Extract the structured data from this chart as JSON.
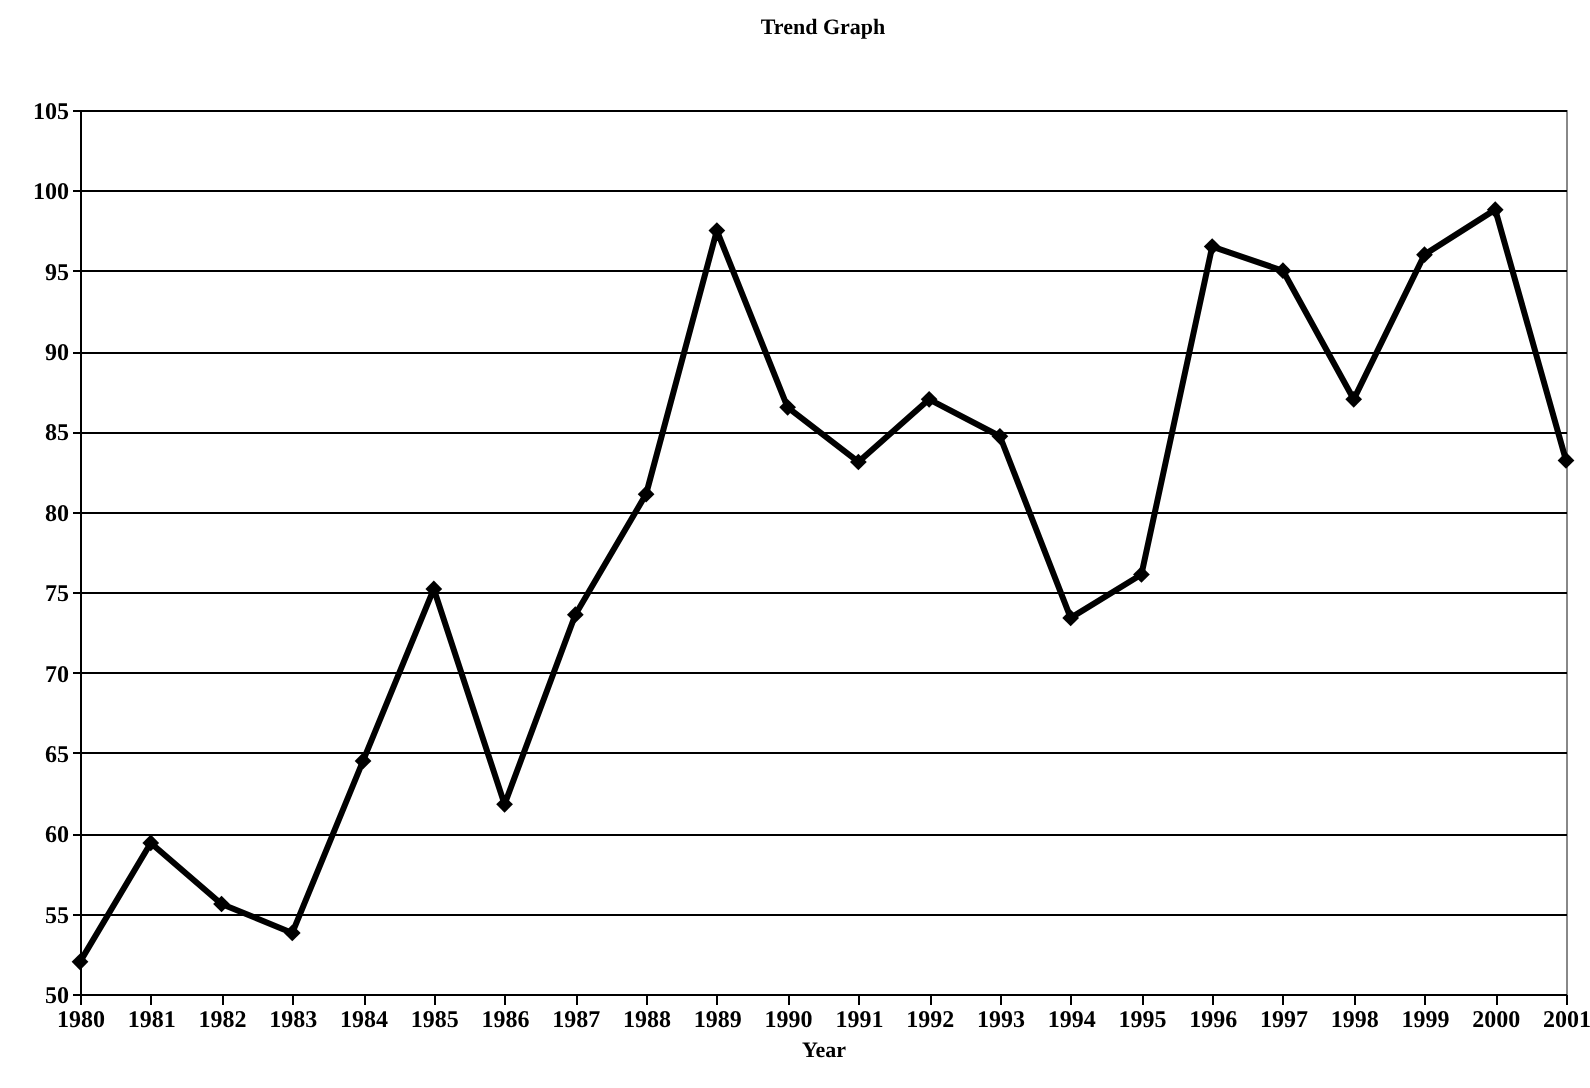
{
  "chart_data": {
    "type": "line",
    "title": "Trend Graph",
    "xlabel": "Year",
    "categories": [
      "1980",
      "1981",
      "1982",
      "1983",
      "1984",
      "1985",
      "1986",
      "1987",
      "1988",
      "1989",
      "1990",
      "1991",
      "1992",
      "1993",
      "1994",
      "1995",
      "1996",
      "1997",
      "1998",
      "1999",
      "2000",
      "2001"
    ],
    "series": [
      {
        "color": "#000000",
        "values": [
          52,
          59.4,
          55.6,
          53.8,
          64.5,
          75.2,
          61.8,
          73.6,
          81.1,
          97.5,
          86.5,
          83.1,
          87,
          84.7,
          73.4,
          76.1,
          96.5,
          95,
          87,
          96,
          98.8,
          83.2
        ]
      }
    ],
    "ylim": [
      50,
      105
    ],
    "yticks": [
      50,
      55,
      60,
      65,
      70,
      75,
      80,
      85,
      90,
      95,
      100,
      105
    ],
    "grid": "y",
    "legend": false,
    "marker": "diamond",
    "line_style": "solid"
  }
}
